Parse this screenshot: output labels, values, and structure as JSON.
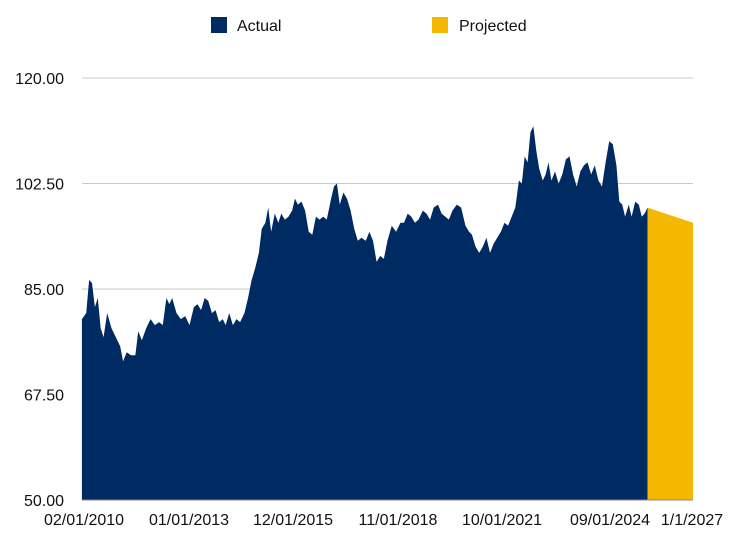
{
  "chart_data": {
    "type": "area",
    "title": "",
    "xlabel": "",
    "ylabel": "",
    "ylim": [
      50,
      120
    ],
    "y_ticks": [
      "50.00",
      "67.50",
      "85.00",
      "102.50",
      "120.00"
    ],
    "x_ticks": [
      "02/01/2010",
      "01/01/2013",
      "12/01/2015",
      "11/01/2018",
      "10/01/2021",
      "09/01/2024",
      "1/1/2027"
    ],
    "x_range": [
      2010.083,
      2027.0
    ],
    "grid": true,
    "legend_position": "top",
    "colors": {
      "Actual": "#002a62",
      "Projected": "#f5b800"
    },
    "series": [
      {
        "name": "Actual",
        "points": [
          [
            2010.08,
            80.0
          ],
          [
            2010.2,
            81.0
          ],
          [
            2010.28,
            86.5
          ],
          [
            2010.36,
            86.0
          ],
          [
            2010.44,
            82.0
          ],
          [
            2010.52,
            83.5
          ],
          [
            2010.6,
            78.5
          ],
          [
            2010.68,
            77.0
          ],
          [
            2010.78,
            81.0
          ],
          [
            2010.9,
            78.5
          ],
          [
            2011.02,
            77.0
          ],
          [
            2011.14,
            75.5
          ],
          [
            2011.22,
            73.0
          ],
          [
            2011.32,
            74.5
          ],
          [
            2011.44,
            74.0
          ],
          [
            2011.56,
            74.0
          ],
          [
            2011.64,
            78.0
          ],
          [
            2011.74,
            76.5
          ],
          [
            2011.86,
            78.5
          ],
          [
            2011.98,
            80.0
          ],
          [
            2012.1,
            79.0
          ],
          [
            2012.22,
            79.5
          ],
          [
            2012.32,
            79.0
          ],
          [
            2012.42,
            83.5
          ],
          [
            2012.5,
            82.5
          ],
          [
            2012.58,
            83.5
          ],
          [
            2012.7,
            81.0
          ],
          [
            2012.82,
            80.0
          ],
          [
            2012.94,
            80.5
          ],
          [
            2013.06,
            79.0
          ],
          [
            2013.18,
            82.0
          ],
          [
            2013.28,
            82.5
          ],
          [
            2013.38,
            81.5
          ],
          [
            2013.48,
            83.5
          ],
          [
            2013.58,
            83.0
          ],
          [
            2013.68,
            81.0
          ],
          [
            2013.78,
            81.5
          ],
          [
            2013.88,
            79.5
          ],
          [
            2013.98,
            80.0
          ],
          [
            2014.06,
            79.0
          ],
          [
            2014.16,
            81.0
          ],
          [
            2014.26,
            79.0
          ],
          [
            2014.36,
            80.0
          ],
          [
            2014.46,
            79.5
          ],
          [
            2014.58,
            81.0
          ],
          [
            2014.68,
            83.5
          ],
          [
            2014.78,
            86.5
          ],
          [
            2014.88,
            88.5
          ],
          [
            2014.98,
            91.0
          ],
          [
            2015.06,
            95.0
          ],
          [
            2015.16,
            96.0
          ],
          [
            2015.24,
            98.5
          ],
          [
            2015.32,
            94.5
          ],
          [
            2015.42,
            97.5
          ],
          [
            2015.52,
            96.0
          ],
          [
            2015.6,
            97.5
          ],
          [
            2015.7,
            96.5
          ],
          [
            2015.8,
            97.0
          ],
          [
            2015.9,
            98.0
          ],
          [
            2015.98,
            100.0
          ],
          [
            2016.06,
            99.0
          ],
          [
            2016.16,
            99.5
          ],
          [
            2016.26,
            98.0
          ],
          [
            2016.36,
            94.5
          ],
          [
            2016.46,
            94.0
          ],
          [
            2016.56,
            97.0
          ],
          [
            2016.66,
            96.5
          ],
          [
            2016.76,
            97.0
          ],
          [
            2016.86,
            96.5
          ],
          [
            2016.98,
            100.0
          ],
          [
            2017.06,
            102.0
          ],
          [
            2017.14,
            102.5
          ],
          [
            2017.22,
            99.0
          ],
          [
            2017.32,
            101.0
          ],
          [
            2017.42,
            100.0
          ],
          [
            2017.52,
            98.0
          ],
          [
            2017.62,
            95.0
          ],
          [
            2017.72,
            93.0
          ],
          [
            2017.82,
            93.5
          ],
          [
            2017.94,
            93.0
          ],
          [
            2018.04,
            94.5
          ],
          [
            2018.14,
            93.0
          ],
          [
            2018.24,
            89.5
          ],
          [
            2018.34,
            90.5
          ],
          [
            2018.44,
            90.0
          ],
          [
            2018.54,
            93.0
          ],
          [
            2018.66,
            95.5
          ],
          [
            2018.78,
            94.5
          ],
          [
            2018.9,
            96.0
          ],
          [
            2019.0,
            96.0
          ],
          [
            2019.1,
            97.5
          ],
          [
            2019.2,
            97.0
          ],
          [
            2019.3,
            96.0
          ],
          [
            2019.4,
            96.5
          ],
          [
            2019.52,
            98.0
          ],
          [
            2019.62,
            97.5
          ],
          [
            2019.72,
            96.5
          ],
          [
            2019.82,
            98.5
          ],
          [
            2019.94,
            99.0
          ],
          [
            2020.04,
            97.5
          ],
          [
            2020.14,
            97.0
          ],
          [
            2020.24,
            96.5
          ],
          [
            2020.34,
            98.0
          ],
          [
            2020.46,
            99.0
          ],
          [
            2020.58,
            98.5
          ],
          [
            2020.7,
            95.5
          ],
          [
            2020.8,
            94.5
          ],
          [
            2020.88,
            94.0
          ],
          [
            2020.98,
            92.0
          ],
          [
            2021.08,
            91.0
          ],
          [
            2021.18,
            92.0
          ],
          [
            2021.28,
            93.5
          ],
          [
            2021.38,
            91.0
          ],
          [
            2021.48,
            92.5
          ],
          [
            2021.58,
            93.5
          ],
          [
            2021.68,
            94.5
          ],
          [
            2021.78,
            96.0
          ],
          [
            2021.88,
            95.5
          ],
          [
            2021.98,
            97.0
          ],
          [
            2022.08,
            98.5
          ],
          [
            2022.18,
            103.0
          ],
          [
            2022.26,
            102.5
          ],
          [
            2022.34,
            107.0
          ],
          [
            2022.42,
            106.0
          ],
          [
            2022.5,
            111.0
          ],
          [
            2022.58,
            112.0
          ],
          [
            2022.66,
            108.0
          ],
          [
            2022.74,
            105.0
          ],
          [
            2022.84,
            103.0
          ],
          [
            2022.92,
            104.0
          ],
          [
            2023.0,
            106.0
          ],
          [
            2023.08,
            103.0
          ],
          [
            2023.18,
            104.5
          ],
          [
            2023.28,
            102.5
          ],
          [
            2023.38,
            104.0
          ],
          [
            2023.48,
            106.5
          ],
          [
            2023.58,
            107.0
          ],
          [
            2023.68,
            104.0
          ],
          [
            2023.78,
            102.0
          ],
          [
            2023.88,
            104.5
          ],
          [
            2023.98,
            105.5
          ],
          [
            2024.08,
            106.0
          ],
          [
            2024.18,
            104.0
          ],
          [
            2024.28,
            105.5
          ],
          [
            2024.38,
            103.0
          ],
          [
            2024.48,
            102.0
          ],
          [
            2024.58,
            106.0
          ],
          [
            2024.68,
            109.5
          ],
          [
            2024.78,
            109.0
          ],
          [
            2024.88,
            105.5
          ],
          [
            2024.96,
            99.5
          ],
          [
            2025.04,
            99.0
          ],
          [
            2025.12,
            97.0
          ],
          [
            2025.22,
            99.0
          ],
          [
            2025.3,
            97.0
          ],
          [
            2025.4,
            99.5
          ],
          [
            2025.5,
            99.0
          ],
          [
            2025.58,
            97.0
          ],
          [
            2025.66,
            97.5
          ],
          [
            2025.74,
            98.5
          ]
        ]
      },
      {
        "name": "Projected",
        "points": [
          [
            2025.74,
            98.5
          ],
          [
            2027.0,
            96.0
          ]
        ]
      }
    ]
  }
}
